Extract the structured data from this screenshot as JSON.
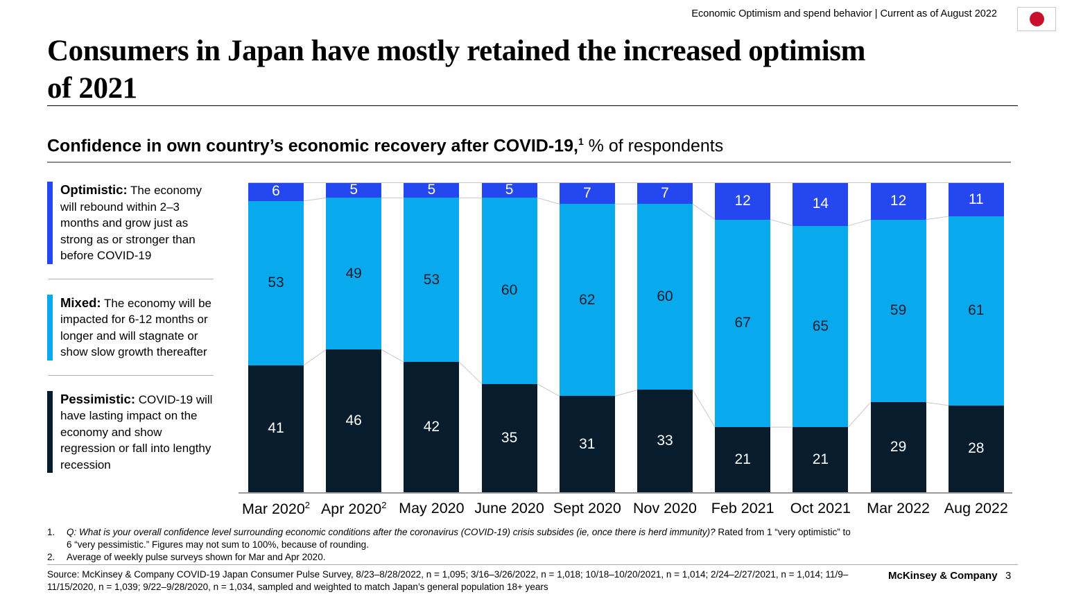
{
  "header": {
    "meta": "Economic Optimism and spend behavior | Current as of August 2022",
    "flag_red": "#c8102e"
  },
  "title": {
    "line1": "Consumers in Japan have mostly retained the increased optimism",
    "line2": "of 2021"
  },
  "subtitle": {
    "bold": "Confidence in own country’s economic recovery after COVID-19,",
    "sup": "1",
    "rest": " % of respondents"
  },
  "legend": [
    {
      "label": "Optimistic:",
      "text": "The economy will rebound within 2–3 months and grow just as strong as or stronger than before COVID-19",
      "color": "#2447f0"
    },
    {
      "label": "Mixed:",
      "text": "The economy will be impacted for 6-12 months or longer and will stagnate or show slow growth thereafter",
      "color": "#09a9ee"
    },
    {
      "label": "Pessimistic:",
      "text": "COVID-19 will have lasting impact on the economy and show regression or fall into lengthy recession",
      "color": "#071c2c"
    }
  ],
  "chart_data": {
    "type": "bar",
    "stacked": true,
    "title": "Confidence in own country’s economic recovery after COVID-19, % of respondents",
    "categories": [
      "Mar 2020",
      "Apr 2020",
      "May 2020",
      "June 2020",
      "Sept 2020",
      "Nov 2020",
      "Feb 2021",
      "Oct 2021",
      "Mar 2022",
      "Aug 2022"
    ],
    "category_footnote_marks": [
      "2",
      "2",
      "",
      "",
      "",
      "",
      "",
      "",
      "",
      ""
    ],
    "series": [
      {
        "name": "Optimistic",
        "color": "#2447f0",
        "text_color": "#ffffff",
        "values": [
          6,
          5,
          5,
          5,
          7,
          7,
          12,
          14,
          12,
          11
        ]
      },
      {
        "name": "Mixed",
        "color": "#09a9ee",
        "text_color": "#071c2c",
        "values": [
          53,
          49,
          53,
          60,
          62,
          60,
          67,
          65,
          59,
          61
        ]
      },
      {
        "name": "Pessimistic",
        "color": "#071c2c",
        "text_color": "#ffffff",
        "values": [
          41,
          46,
          42,
          35,
          31,
          33,
          21,
          21,
          29,
          28
        ]
      }
    ],
    "ylim": [
      0,
      100
    ],
    "grid": false,
    "legend_position": "left",
    "connector_color": "#c9c9c9"
  },
  "footnotes": [
    {
      "num": "1.",
      "italic": "Q: What is your overall confidence level surrounding economic conditions after the coronavirus (COVID-19) crisis subsides (ie, once there is herd immunity)?",
      "rest": "Rated from 1 “very optimistic” to 6 “very pessimistic.” Figures may not sum to 100%, because of rounding."
    },
    {
      "num": "2.",
      "rest": "Average of weekly pulse surveys shown for Mar and Apr 2020."
    }
  ],
  "source": "Source: McKinsey & Company COVID-19 Japan Consumer Pulse Survey, 8/23–8/28/2022, n = 1,095; 3/16–3/26/2022, n = 1,018; 10/18–10/20/2021, n = 1,014; 2/24–2/27/2021, n = 1,014; 11/9–11/15/2020, n = 1,039; 9/22–9/28/2020, n = 1,034, sampled and weighted to match Japan’s general population 18+ years",
  "footer": {
    "brand": "McKinsey & Company",
    "page": "3"
  }
}
